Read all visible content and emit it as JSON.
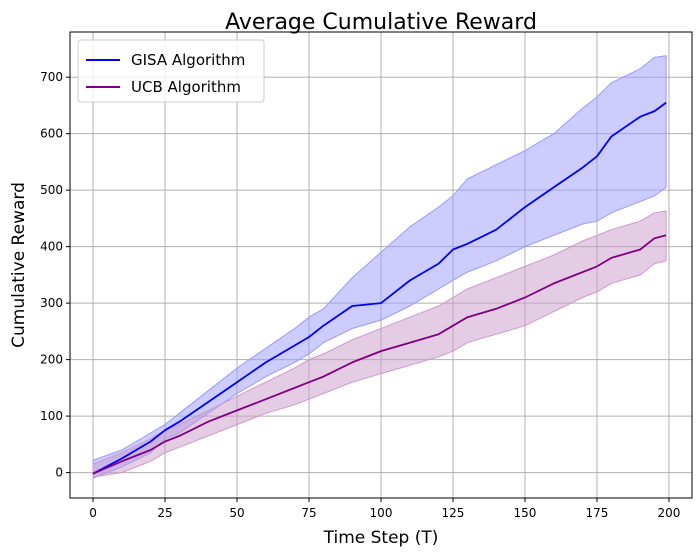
{
  "chart_data": {
    "type": "line",
    "title": "Average Cumulative Reward",
    "xlabel": "Time Step (T)",
    "ylabel": "Cumulative Reward",
    "xlim": [
      -8,
      208
    ],
    "ylim": [
      -45,
      780
    ],
    "xticks": [
      0,
      25,
      50,
      75,
      100,
      125,
      150,
      175,
      200
    ],
    "yticks": [
      0,
      100,
      200,
      300,
      400,
      500,
      600,
      700
    ],
    "grid": true,
    "legend_position": "upper-left",
    "series": [
      {
        "name": "GISA Algorithm",
        "color": "#0000ff",
        "band_color": "#9999ff",
        "x": [
          0,
          10,
          20,
          25,
          30,
          40,
          50,
          60,
          70,
          75,
          80,
          90,
          100,
          110,
          120,
          125,
          130,
          140,
          150,
          160,
          170,
          175,
          180,
          190,
          195,
          199
        ],
        "values": [
          -2,
          25,
          55,
          75,
          90,
          125,
          160,
          195,
          225,
          240,
          260,
          295,
          300,
          340,
          370,
          395,
          405,
          430,
          470,
          505,
          540,
          560,
          595,
          630,
          640,
          655
        ],
        "upper": [
          22,
          40,
          70,
          85,
          105,
          145,
          185,
          220,
          255,
          275,
          290,
          345,
          390,
          435,
          470,
          490,
          520,
          545,
          570,
          600,
          645,
          665,
          690,
          715,
          735,
          738
        ],
        "lower": [
          -10,
          10,
          35,
          60,
          70,
          105,
          140,
          170,
          195,
          210,
          230,
          255,
          270,
          295,
          325,
          340,
          355,
          375,
          400,
          420,
          440,
          445,
          460,
          480,
          490,
          505
        ]
      },
      {
        "name": "UCB Algorithm",
        "color": "#800080",
        "band_color": "#cc99cc",
        "x": [
          0,
          10,
          20,
          25,
          30,
          40,
          50,
          60,
          70,
          75,
          80,
          90,
          100,
          110,
          120,
          125,
          130,
          140,
          150,
          160,
          170,
          175,
          180,
          190,
          195,
          199
        ],
        "values": [
          -2,
          20,
          40,
          55,
          65,
          90,
          110,
          130,
          150,
          160,
          170,
          195,
          215,
          230,
          245,
          260,
          275,
          290,
          310,
          335,
          355,
          365,
          380,
          395,
          415,
          420
        ],
        "upper": [
          15,
          35,
          60,
          75,
          85,
          110,
          135,
          160,
          185,
          200,
          210,
          235,
          255,
          275,
          295,
          310,
          325,
          345,
          365,
          385,
          410,
          420,
          430,
          445,
          460,
          463
        ],
        "lower": [
          -8,
          0,
          20,
          35,
          45,
          65,
          85,
          105,
          120,
          130,
          140,
          160,
          175,
          190,
          205,
          215,
          230,
          245,
          260,
          285,
          310,
          320,
          335,
          350,
          370,
          375
        ]
      }
    ]
  }
}
